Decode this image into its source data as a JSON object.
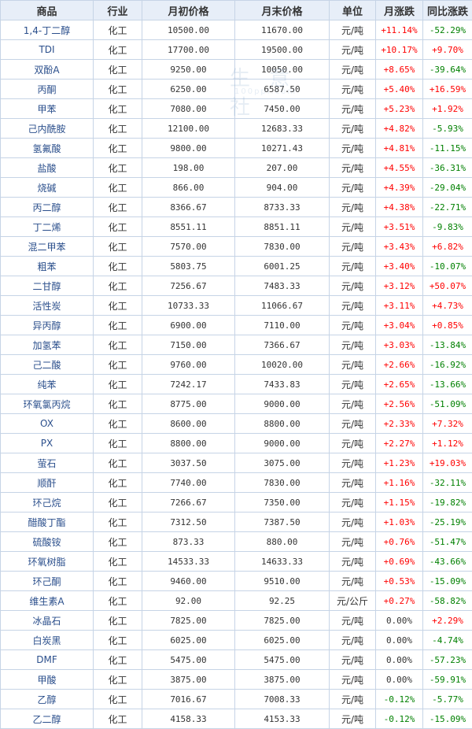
{
  "headers": {
    "name": "商品",
    "industry": "行业",
    "start_price": "月初价格",
    "end_price": "月末价格",
    "unit": "单位",
    "monthly_change": "月涨跌",
    "yoy_change": "同比涨跌"
  },
  "watermark": {
    "text": "生 意 社",
    "url": "100ppi.com"
  },
  "colors": {
    "up": "#ff0000",
    "down": "#008000",
    "header_bg": "#e7eef8",
    "border": "#c6d4e6",
    "name_link": "#2b4f8c"
  },
  "rows": [
    {
      "name": "1,4-丁二醇",
      "industry": "化工",
      "start": "10500.00",
      "end": "11670.00",
      "unit": "元/吨",
      "month": "+11.14%",
      "month_dir": "up",
      "yoy": "-52.29%",
      "yoy_dir": "down"
    },
    {
      "name": "TDI",
      "industry": "化工",
      "start": "17700.00",
      "end": "19500.00",
      "unit": "元/吨",
      "month": "+10.17%",
      "month_dir": "up",
      "yoy": "+9.70%",
      "yoy_dir": "up"
    },
    {
      "name": "双酚A",
      "industry": "化工",
      "start": "9250.00",
      "end": "10050.00",
      "unit": "元/吨",
      "month": "+8.65%",
      "month_dir": "up",
      "yoy": "-39.64%",
      "yoy_dir": "down"
    },
    {
      "name": "丙酮",
      "industry": "化工",
      "start": "6250.00",
      "end": "6587.50",
      "unit": "元/吨",
      "month": "+5.40%",
      "month_dir": "up",
      "yoy": "+16.59%",
      "yoy_dir": "up"
    },
    {
      "name": "甲苯",
      "industry": "化工",
      "start": "7080.00",
      "end": "7450.00",
      "unit": "元/吨",
      "month": "+5.23%",
      "month_dir": "up",
      "yoy": "+1.92%",
      "yoy_dir": "up"
    },
    {
      "name": "己内酰胺",
      "industry": "化工",
      "start": "12100.00",
      "end": "12683.33",
      "unit": "元/吨",
      "month": "+4.82%",
      "month_dir": "up",
      "yoy": "-5.93%",
      "yoy_dir": "down"
    },
    {
      "name": "氢氟酸",
      "industry": "化工",
      "start": "9800.00",
      "end": "10271.43",
      "unit": "元/吨",
      "month": "+4.81%",
      "month_dir": "up",
      "yoy": "-11.15%",
      "yoy_dir": "down"
    },
    {
      "name": "盐酸",
      "industry": "化工",
      "start": "198.00",
      "end": "207.00",
      "unit": "元/吨",
      "month": "+4.55%",
      "month_dir": "up",
      "yoy": "-36.31%",
      "yoy_dir": "down"
    },
    {
      "name": "烧碱",
      "industry": "化工",
      "start": "866.00",
      "end": "904.00",
      "unit": "元/吨",
      "month": "+4.39%",
      "month_dir": "up",
      "yoy": "-29.04%",
      "yoy_dir": "down"
    },
    {
      "name": "丙二醇",
      "industry": "化工",
      "start": "8366.67",
      "end": "8733.33",
      "unit": "元/吨",
      "month": "+4.38%",
      "month_dir": "up",
      "yoy": "-22.71%",
      "yoy_dir": "down"
    },
    {
      "name": "丁二烯",
      "industry": "化工",
      "start": "8551.11",
      "end": "8851.11",
      "unit": "元/吨",
      "month": "+3.51%",
      "month_dir": "up",
      "yoy": "-9.83%",
      "yoy_dir": "down"
    },
    {
      "name": "混二甲苯",
      "industry": "化工",
      "start": "7570.00",
      "end": "7830.00",
      "unit": "元/吨",
      "month": "+3.43%",
      "month_dir": "up",
      "yoy": "+6.82%",
      "yoy_dir": "up"
    },
    {
      "name": "粗苯",
      "industry": "化工",
      "start": "5803.75",
      "end": "6001.25",
      "unit": "元/吨",
      "month": "+3.40%",
      "month_dir": "up",
      "yoy": "-10.07%",
      "yoy_dir": "down"
    },
    {
      "name": "二甘醇",
      "industry": "化工",
      "start": "7256.67",
      "end": "7483.33",
      "unit": "元/吨",
      "month": "+3.12%",
      "month_dir": "up",
      "yoy": "+50.07%",
      "yoy_dir": "up"
    },
    {
      "name": "活性炭",
      "industry": "化工",
      "start": "10733.33",
      "end": "11066.67",
      "unit": "元/吨",
      "month": "+3.11%",
      "month_dir": "up",
      "yoy": "+4.73%",
      "yoy_dir": "up"
    },
    {
      "name": "异丙醇",
      "industry": "化工",
      "start": "6900.00",
      "end": "7110.00",
      "unit": "元/吨",
      "month": "+3.04%",
      "month_dir": "up",
      "yoy": "+0.85%",
      "yoy_dir": "up"
    },
    {
      "name": "加氢苯",
      "industry": "化工",
      "start": "7150.00",
      "end": "7366.67",
      "unit": "元/吨",
      "month": "+3.03%",
      "month_dir": "up",
      "yoy": "-13.84%",
      "yoy_dir": "down"
    },
    {
      "name": "己二酸",
      "industry": "化工",
      "start": "9760.00",
      "end": "10020.00",
      "unit": "元/吨",
      "month": "+2.66%",
      "month_dir": "up",
      "yoy": "-16.92%",
      "yoy_dir": "down"
    },
    {
      "name": "纯苯",
      "industry": "化工",
      "start": "7242.17",
      "end": "7433.83",
      "unit": "元/吨",
      "month": "+2.65%",
      "month_dir": "up",
      "yoy": "-13.66%",
      "yoy_dir": "down"
    },
    {
      "name": "环氧氯丙烷",
      "industry": "化工",
      "start": "8775.00",
      "end": "9000.00",
      "unit": "元/吨",
      "month": "+2.56%",
      "month_dir": "up",
      "yoy": "-51.09%",
      "yoy_dir": "down"
    },
    {
      "name": "OX",
      "industry": "化工",
      "start": "8600.00",
      "end": "8800.00",
      "unit": "元/吨",
      "month": "+2.33%",
      "month_dir": "up",
      "yoy": "+7.32%",
      "yoy_dir": "up"
    },
    {
      "name": "PX",
      "industry": "化工",
      "start": "8800.00",
      "end": "9000.00",
      "unit": "元/吨",
      "month": "+2.27%",
      "month_dir": "up",
      "yoy": "+1.12%",
      "yoy_dir": "up"
    },
    {
      "name": "萤石",
      "industry": "化工",
      "start": "3037.50",
      "end": "3075.00",
      "unit": "元/吨",
      "month": "+1.23%",
      "month_dir": "up",
      "yoy": "+19.03%",
      "yoy_dir": "up"
    },
    {
      "name": "顺酐",
      "industry": "化工",
      "start": "7740.00",
      "end": "7830.00",
      "unit": "元/吨",
      "month": "+1.16%",
      "month_dir": "up",
      "yoy": "-32.11%",
      "yoy_dir": "down"
    },
    {
      "name": "环己烷",
      "industry": "化工",
      "start": "7266.67",
      "end": "7350.00",
      "unit": "元/吨",
      "month": "+1.15%",
      "month_dir": "up",
      "yoy": "-19.82%",
      "yoy_dir": "down"
    },
    {
      "name": "醋酸丁酯",
      "industry": "化工",
      "start": "7312.50",
      "end": "7387.50",
      "unit": "元/吨",
      "month": "+1.03%",
      "month_dir": "up",
      "yoy": "-25.19%",
      "yoy_dir": "down"
    },
    {
      "name": "硫酸铵",
      "industry": "化工",
      "start": "873.33",
      "end": "880.00",
      "unit": "元/吨",
      "month": "+0.76%",
      "month_dir": "up",
      "yoy": "-51.47%",
      "yoy_dir": "down"
    },
    {
      "name": "环氧树脂",
      "industry": "化工",
      "start": "14533.33",
      "end": "14633.33",
      "unit": "元/吨",
      "month": "+0.69%",
      "month_dir": "up",
      "yoy": "-43.66%",
      "yoy_dir": "down"
    },
    {
      "name": "环己酮",
      "industry": "化工",
      "start": "9460.00",
      "end": "9510.00",
      "unit": "元/吨",
      "month": "+0.53%",
      "month_dir": "up",
      "yoy": "-15.09%",
      "yoy_dir": "down"
    },
    {
      "name": "维生素A",
      "industry": "化工",
      "start": "92.00",
      "end": "92.25",
      "unit": "元/公斤",
      "month": "+0.27%",
      "month_dir": "up",
      "yoy": "-58.82%",
      "yoy_dir": "down"
    },
    {
      "name": "冰晶石",
      "industry": "化工",
      "start": "7825.00",
      "end": "7825.00",
      "unit": "元/吨",
      "month": "0.00%",
      "month_dir": "flat",
      "yoy": "+2.29%",
      "yoy_dir": "up"
    },
    {
      "name": "白炭黑",
      "industry": "化工",
      "start": "6025.00",
      "end": "6025.00",
      "unit": "元/吨",
      "month": "0.00%",
      "month_dir": "flat",
      "yoy": "-4.74%",
      "yoy_dir": "down"
    },
    {
      "name": "DMF",
      "industry": "化工",
      "start": "5475.00",
      "end": "5475.00",
      "unit": "元/吨",
      "month": "0.00%",
      "month_dir": "flat",
      "yoy": "-57.23%",
      "yoy_dir": "down"
    },
    {
      "name": "甲酸",
      "industry": "化工",
      "start": "3875.00",
      "end": "3875.00",
      "unit": "元/吨",
      "month": "0.00%",
      "month_dir": "flat",
      "yoy": "-59.91%",
      "yoy_dir": "down"
    },
    {
      "name": "乙醇",
      "industry": "化工",
      "start": "7016.67",
      "end": "7008.33",
      "unit": "元/吨",
      "month": "-0.12%",
      "month_dir": "down",
      "yoy": "-5.77%",
      "yoy_dir": "down"
    },
    {
      "name": "乙二醇",
      "industry": "化工",
      "start": "4158.33",
      "end": "4153.33",
      "unit": "元/吨",
      "month": "-0.12%",
      "month_dir": "down",
      "yoy": "-15.09%",
      "yoy_dir": "down"
    }
  ]
}
